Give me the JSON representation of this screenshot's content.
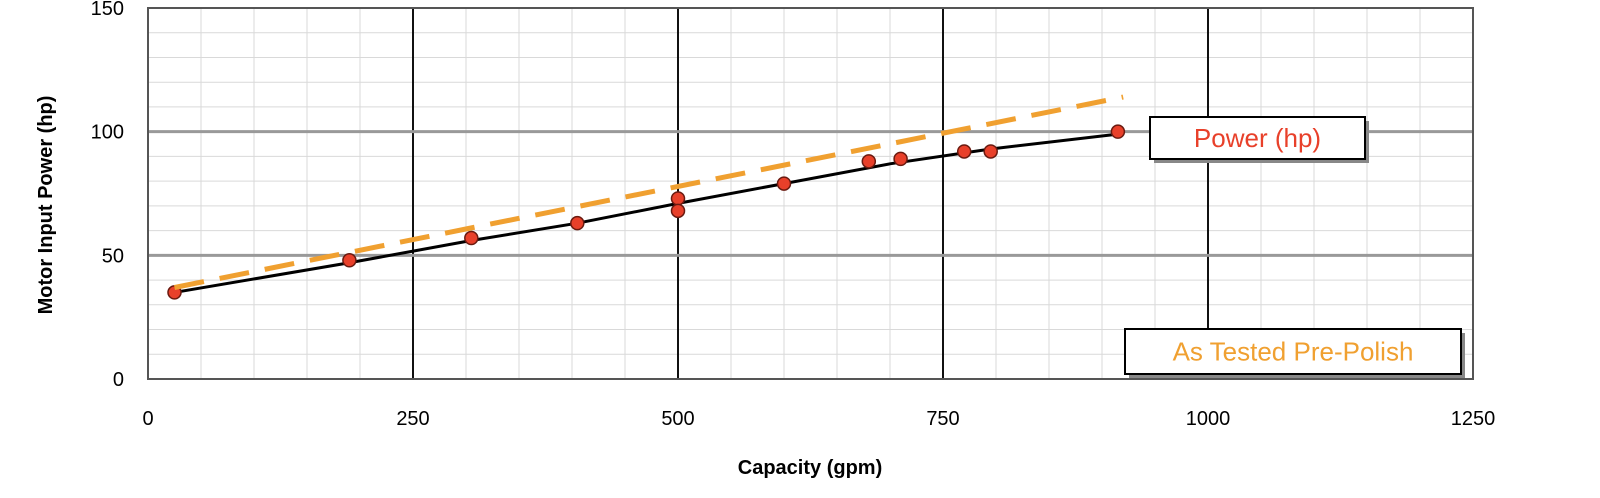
{
  "chart_data": {
    "type": "scatter",
    "title": "",
    "xlabel": "Capacity (gpm)",
    "ylabel": "Motor Input Power (hp)",
    "xlim": [
      0,
      1250
    ],
    "ylim": [
      0,
      150
    ],
    "x_ticks": [
      0,
      250,
      500,
      750,
      1000,
      1250
    ],
    "y_ticks": [
      0,
      50,
      100,
      150
    ],
    "grid": true,
    "series": [
      {
        "name": "Power (hp)",
        "kind": "points-with-line",
        "color": "#e8402a",
        "line_color": "#000000",
        "points": [
          {
            "x": 25,
            "y": 35
          },
          {
            "x": 190,
            "y": 48
          },
          {
            "x": 305,
            "y": 57
          },
          {
            "x": 405,
            "y": 63
          },
          {
            "x": 500,
            "y": 73
          },
          {
            "x": 500,
            "y": 68
          },
          {
            "x": 600,
            "y": 79
          },
          {
            "x": 680,
            "y": 88
          },
          {
            "x": 710,
            "y": 89
          },
          {
            "x": 770,
            "y": 92
          },
          {
            "x": 795,
            "y": 92
          },
          {
            "x": 915,
            "y": 100
          }
        ],
        "line": [
          {
            "x": 25,
            "y": 35
          },
          {
            "x": 190,
            "y": 47
          },
          {
            "x": 305,
            "y": 56
          },
          {
            "x": 405,
            "y": 63
          },
          {
            "x": 500,
            "y": 71
          },
          {
            "x": 600,
            "y": 79
          },
          {
            "x": 700,
            "y": 87
          },
          {
            "x": 795,
            "y": 93
          },
          {
            "x": 915,
            "y": 99
          }
        ]
      },
      {
        "name": "As Tested Pre-Polish",
        "kind": "dashed-line",
        "color": "#f0a030",
        "line": [
          {
            "x": 25,
            "y": 37
          },
          {
            "x": 920,
            "y": 114
          }
        ]
      }
    ],
    "legend": [
      {
        "label": "Power (hp)",
        "color": "#e8402a",
        "placement": "right-upper"
      },
      {
        "label": "As Tested Pre-Polish",
        "color": "#f0a030",
        "placement": "bottom-right"
      }
    ]
  }
}
